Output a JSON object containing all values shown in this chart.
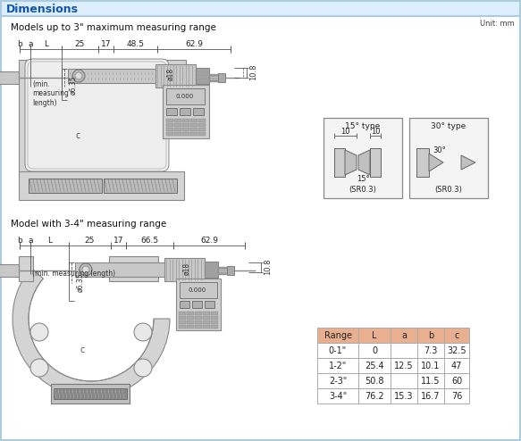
{
  "title": "Dimensions",
  "title_color": "#1155aa",
  "bg_color": "#ffffff",
  "border_color": "#aaccdd",
  "unit_text": "Unit: mm",
  "section1_title": "Models up to 3\" maximum measuring range",
  "section2_title": "Model with 3-4\" measuring range",
  "tip_type1_title": "15° type",
  "tip_type2_title": "30° type",
  "tip_type1_label": "(SR0.3)",
  "tip_type2_label": "(SR0.3)",
  "table_header": [
    "Range",
    "L",
    "a",
    "b",
    "c"
  ],
  "table_header_bg": "#e8b090",
  "table_rows": [
    [
      "0-1\"",
      "0",
      "",
      "7.3",
      "32.5"
    ],
    [
      "1-2\"",
      "25.4",
      "12.5",
      "10.1",
      "47"
    ],
    [
      "2-3\"",
      "50.8",
      "",
      "11.5",
      "60"
    ],
    [
      "3-4\"",
      "76.2",
      "15.3",
      "16.7",
      "76"
    ]
  ],
  "min_meas_label": "(min.\nmeasuring\nlength)",
  "min_meas_label2": "(min. measuring length)",
  "frame_fill": "#d4d4d4",
  "frame_edge": "#888888",
  "body_fill": "#c8c8c8",
  "dark_fill": "#a0a0a0",
  "light_fill": "#e8e8e8",
  "hatch_fill": "#707070",
  "display_fill": "#d8d8d8",
  "screen_fill": "#c8c8c8",
  "tip_box_fill": "#f4f4f4"
}
